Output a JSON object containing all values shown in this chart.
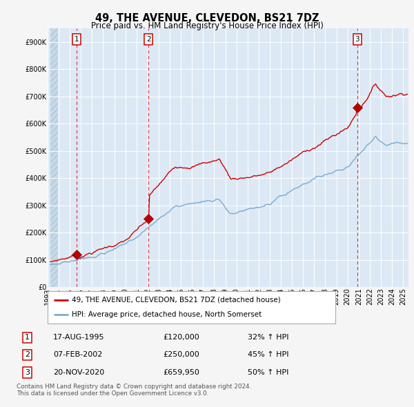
{
  "title": "49, THE AVENUE, CLEVEDON, BS21 7DZ",
  "subtitle": "Price paid vs. HM Land Registry's House Price Index (HPI)",
  "ylim": [
    0,
    950000
  ],
  "yticks": [
    0,
    100000,
    200000,
    300000,
    400000,
    500000,
    600000,
    700000,
    800000,
    900000
  ],
  "ytick_labels": [
    "£0",
    "£100K",
    "£200K",
    "£300K",
    "£400K",
    "£500K",
    "£600K",
    "£700K",
    "£800K",
    "£900K"
  ],
  "xlim_start": 1993.25,
  "xlim_end": 2025.5,
  "plot_bg_color": "#dce9f5",
  "fig_bg_color": "#f5f5f5",
  "grid_color": "#ffffff",
  "red_line_color": "#cc0000",
  "blue_line_color": "#7aaacf",
  "red_dot_color": "#bb0000",
  "sale1_x": 1995.62,
  "sale1_y": 120000,
  "sale2_x": 2002.09,
  "sale2_y": 250000,
  "sale3_x": 2020.88,
  "sale3_y": 659950,
  "legend_label_red": "49, THE AVENUE, CLEVEDON, BS21 7DZ (detached house)",
  "legend_label_blue": "HPI: Average price, detached house, North Somerset",
  "table_rows": [
    {
      "num": "1",
      "date": "17-AUG-1995",
      "price": "£120,000",
      "hpi": "32% ↑ HPI"
    },
    {
      "num": "2",
      "date": "07-FEB-2002",
      "price": "£250,000",
      "hpi": "45% ↑ HPI"
    },
    {
      "num": "3",
      "date": "20-NOV-2020",
      "price": "£659,950",
      "hpi": "50% ↑ HPI"
    }
  ],
  "footer": "Contains HM Land Registry data © Crown copyright and database right 2024.\nThis data is licensed under the Open Government Licence v3.0.",
  "title_fontsize": 10.5,
  "subtitle_fontsize": 8.5,
  "tick_fontsize": 7,
  "legend_fontsize": 7.5,
  "table_fontsize": 8
}
